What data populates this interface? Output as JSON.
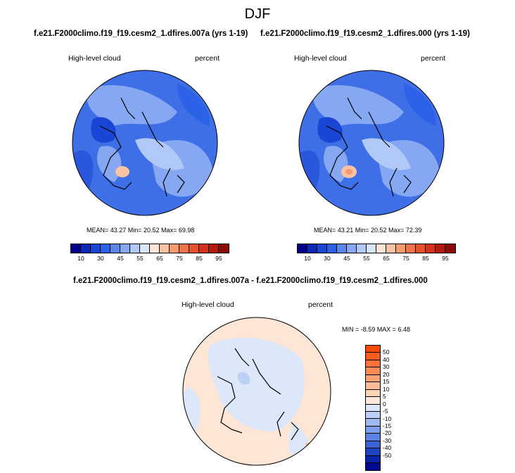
{
  "season": "DJF",
  "top_left": {
    "case": "f.e21.F2000climo.f19_f19.cesm2_1.dfires.007a (yrs 1-19)",
    "left_label": "High-level cloud",
    "right_label": "percent",
    "stats": "MEAN= 43.27  Min= 20.52  Max= 69.98"
  },
  "top_right": {
    "case": "f.e21.F2000climo.f19_f19.cesm2_1.dfires.000 (yrs 1-19)",
    "left_label": "High-level cloud",
    "right_label": "percent",
    "stats": "MEAN= 43.21  Min= 20.52  Max= 72.39"
  },
  "diff": {
    "case": "f.e21.F2000climo.f19_f19.cesm2_1.dfires.007a - f.e21.F2000climo.f19_f19.cesm2_1.dfires.000",
    "left_label": "High-level cloud",
    "right_label": "percent",
    "stats": "MIN = -8.59 MAX =  6.48"
  },
  "colorbar_top": {
    "colors": [
      "#00008b",
      "#0d27b6",
      "#1a46d6",
      "#2b62e8",
      "#5a86ee",
      "#86a8f2",
      "#b1c9f6",
      "#d9e6fa",
      "#fde6d6",
      "#f8c2a3",
      "#f59b70",
      "#f07448",
      "#e8512b",
      "#d5301a",
      "#b41a0c",
      "#8e0b05"
    ],
    "ticks": [
      "10",
      "30",
      "45",
      "55",
      "65",
      "75",
      "85",
      "95"
    ]
  },
  "colorbar_diff": {
    "colors": [
      "#fb4a08",
      "#fb5d1e",
      "#fc7238",
      "#fb8a55",
      "#f9a374",
      "#f8bb95",
      "#fad2b6",
      "#fde9dc",
      "#dce8f9",
      "#bccff4",
      "#9fb9f1",
      "#7e9feb",
      "#5a81e3",
      "#3a63d6",
      "#1e43c0",
      "#0b25a8",
      "#000a8a"
    ],
    "ticks": [
      "50",
      "40",
      "30",
      "20",
      "15",
      "10",
      "5",
      "0",
      "-5",
      "-10",
      "-15",
      "-20",
      "-30",
      "-40",
      "-50"
    ]
  },
  "chart_data": [
    {
      "type": "heatmap",
      "title": "High-level cloud",
      "units": "percent",
      "case": "f.e21.F2000climo.f19_f19.cesm2_1.dfires.007a (yrs 1-19)",
      "mean": 43.27,
      "min": 20.52,
      "max": 69.98,
      "levels": [
        10,
        30,
        45,
        55,
        65,
        75,
        85,
        95
      ]
    },
    {
      "type": "heatmap",
      "title": "High-level cloud",
      "units": "percent",
      "case": "f.e21.F2000climo.f19_f19.cesm2_1.dfires.000 (yrs 1-19)",
      "mean": 43.21,
      "min": 20.52,
      "max": 72.39,
      "levels": [
        10,
        30,
        45,
        55,
        65,
        75,
        85,
        95
      ]
    },
    {
      "type": "heatmap",
      "title": "High-level cloud",
      "units": "percent",
      "case": "f.e21.F2000climo.f19_f19.cesm2_1.dfires.007a - f.e21.F2000climo.f19_f19.cesm2_1.dfires.000",
      "min": -8.59,
      "max": 6.48,
      "levels": [
        -50,
        -40,
        -30,
        -20,
        -15,
        -10,
        -5,
        0,
        5,
        10,
        15,
        20,
        30,
        40,
        50
      ]
    }
  ]
}
